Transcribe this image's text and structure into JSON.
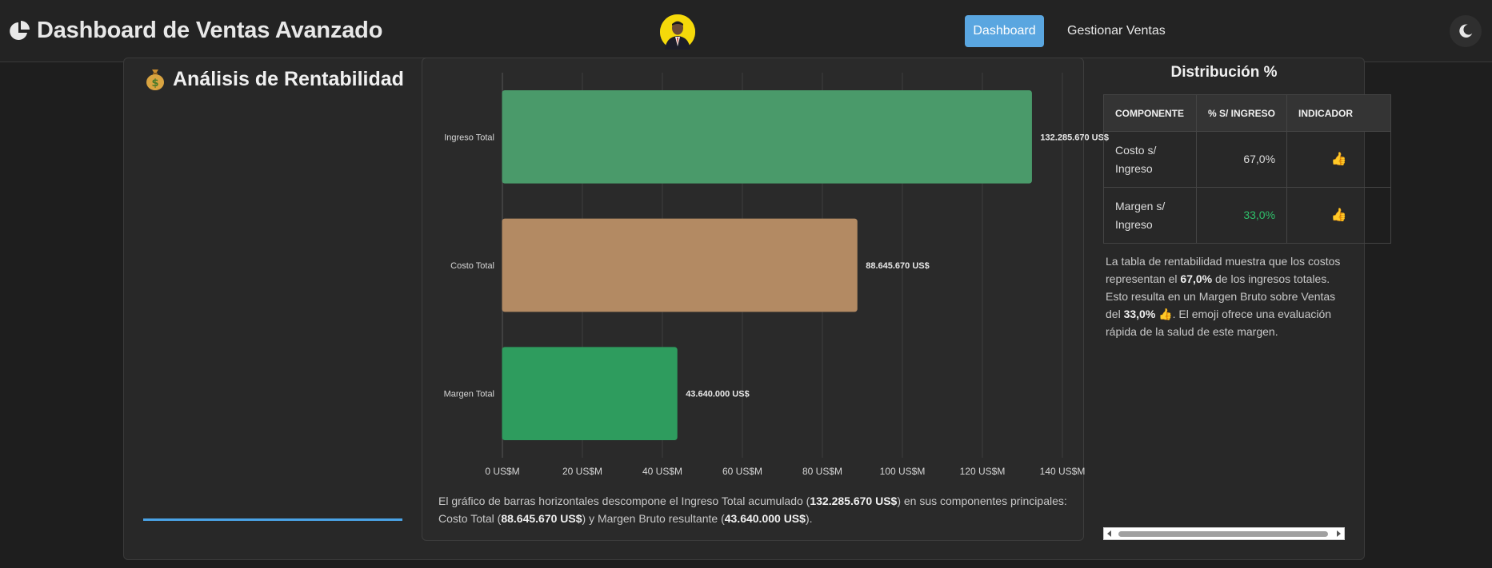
{
  "navbar": {
    "title": "Dashboard de Ventas Avanzado",
    "brand_icon": "pie-chart-icon",
    "nav_dashboard": "Dashboard",
    "nav_manage": "Gestionar Ventas",
    "theme_icon": "moon-icon"
  },
  "section": {
    "title": "Análisis de Rentabilidad",
    "icon": "money-bag-icon"
  },
  "chart_data": {
    "type": "bar",
    "orientation": "horizontal",
    "categories": [
      "Ingreso Total",
      "Costo Total",
      "Margen Total"
    ],
    "values": [
      132.28567,
      88.64567,
      43.64
    ],
    "value_labels": [
      "132.285.670 US$",
      "88.645.670 US$",
      "43.640.000 US$"
    ],
    "colors": [
      "#4a9a6a",
      "#b38a63",
      "#2e9c5e"
    ],
    "xlim": [
      0,
      140
    ],
    "xticks": [
      0,
      20,
      40,
      60,
      80,
      100,
      120,
      140
    ],
    "xtick_labels": [
      "0 US$M",
      "20 US$M",
      "40 US$M",
      "60 US$M",
      "80 US$M",
      "100 US$M",
      "120 US$M",
      "140 US$M"
    ],
    "grid": true
  },
  "chart_description": {
    "p1": "El gráfico de barras horizontales descompone el Ingreso Total acumulado (",
    "b1": "132.285.670 US$",
    "p2": ") en sus componentes principales: Costo Total (",
    "b2": "88.645.670 US$",
    "p3": ") y Margen Bruto resultante (",
    "b3": "43.640.000 US$",
    "p4": ")."
  },
  "distribution": {
    "title": "Distribución %",
    "headers": [
      "Componente",
      "% S/ Ingreso",
      "Indicador"
    ],
    "rows": [
      {
        "component": "Costo s/ Ingreso",
        "percent": "67,0%",
        "indicator": "👍"
      },
      {
        "component": "Margen s/ Ingreso",
        "percent": "33,0%",
        "indicator": "👍"
      }
    ],
    "positive_color": "#2fbf6a"
  },
  "distribution_description": {
    "p1": "La tabla de rentabilidad muestra que los costos representan el ",
    "b1": "67,0%",
    "p2": " de los ingresos totales. Esto resulta en un Margen Bruto sobre Ventas del ",
    "b2": "33,0%",
    "emoji": "👍",
    "p3": ". El emoji ofrece una evaluación rápida de la salud de este margen."
  }
}
